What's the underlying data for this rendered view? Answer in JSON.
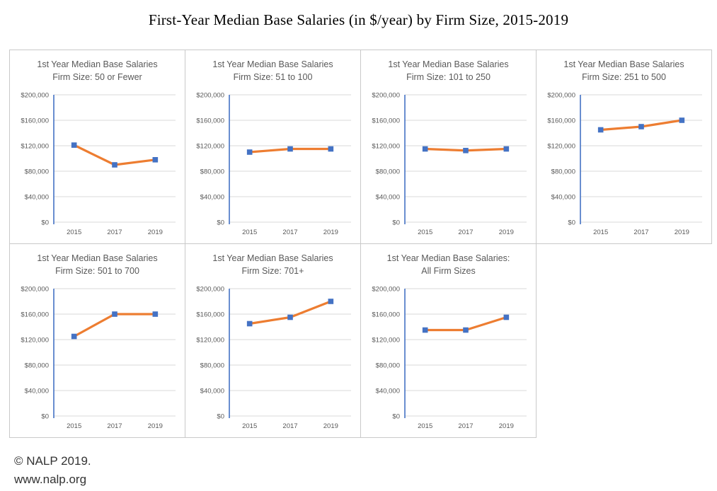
{
  "main": {
    "title": "First-Year Median Base Salaries (in $/year) by Firm Size, 2015-2019"
  },
  "footer": {
    "line1": "© NALP 2019.",
    "line2": "www.nalp.org"
  },
  "axes": {
    "ymin": 0,
    "ymax": 200000,
    "ytick_values": [
      200000,
      160000,
      120000,
      80000,
      40000,
      0
    ],
    "ytick_labels": [
      "$200,000",
      "$160,000",
      "$120,000",
      "$80,000",
      "$40,000",
      "$0"
    ],
    "grid": true,
    "legend": "none"
  },
  "colors": {
    "line": "#ED7D31",
    "marker": "#4472C4",
    "axis": "#4472C4",
    "gridline": "#D9D9D9",
    "tick_text": "#595959",
    "title_text": "#595959",
    "panel_border": "#C9C9C9"
  },
  "chart_data": [
    {
      "type": "line",
      "id": "firm-50-or-fewer",
      "title_line1": "1st Year Median Base Salaries",
      "title_line2": "Firm Size: 50 or Fewer",
      "categories": [
        "2015",
        "2017",
        "2019"
      ],
      "values": [
        121000,
        90000,
        98000
      ],
      "xlabel": "",
      "ylabel": "",
      "ylim": [
        0,
        200000
      ]
    },
    {
      "type": "line",
      "id": "firm-51-to-100",
      "title_line1": "1st Year Median Base Salaries",
      "title_line2": "Firm Size: 51 to 100",
      "categories": [
        "2015",
        "2017",
        "2019"
      ],
      "values": [
        110000,
        115000,
        115000
      ],
      "xlabel": "",
      "ylabel": "",
      "ylim": [
        0,
        200000
      ]
    },
    {
      "type": "line",
      "id": "firm-101-to-250",
      "title_line1": "1st Year Median Base Salaries",
      "title_line2": "Firm Size: 101 to 250",
      "categories": [
        "2015",
        "2017",
        "2019"
      ],
      "values": [
        115000,
        112500,
        115000
      ],
      "xlabel": "",
      "ylabel": "",
      "ylim": [
        0,
        200000
      ]
    },
    {
      "type": "line",
      "id": "firm-251-to-500",
      "title_line1": "1st Year Median Base Salaries",
      "title_line2": "Firm Size: 251 to 500",
      "categories": [
        "2015",
        "2017",
        "2019"
      ],
      "values": [
        145000,
        150000,
        160000
      ],
      "xlabel": "",
      "ylabel": "",
      "ylim": [
        0,
        200000
      ]
    },
    {
      "type": "line",
      "id": "firm-501-to-700",
      "title_line1": "1st Year Median Base Salaries",
      "title_line2": "Firm Size: 501 to 700",
      "categories": [
        "2015",
        "2017",
        "2019"
      ],
      "values": [
        125000,
        160000,
        160000
      ],
      "xlabel": "",
      "ylabel": "",
      "ylim": [
        0,
        200000
      ]
    },
    {
      "type": "line",
      "id": "firm-701-plus",
      "title_line1": "1st Year Median Base Salaries",
      "title_line2": "Firm Size: 701+",
      "categories": [
        "2015",
        "2017",
        "2019"
      ],
      "values": [
        145000,
        155000,
        180000
      ],
      "xlabel": "",
      "ylabel": "",
      "ylim": [
        0,
        200000
      ]
    },
    {
      "type": "line",
      "id": "all-firm-sizes",
      "title_line1": "1st Year Median Base Salaries:",
      "title_line2": "All Firm Sizes",
      "categories": [
        "2015",
        "2017",
        "2019"
      ],
      "values": [
        135000,
        135000,
        155000
      ],
      "xlabel": "",
      "ylabel": "",
      "ylim": [
        0,
        200000
      ]
    }
  ]
}
